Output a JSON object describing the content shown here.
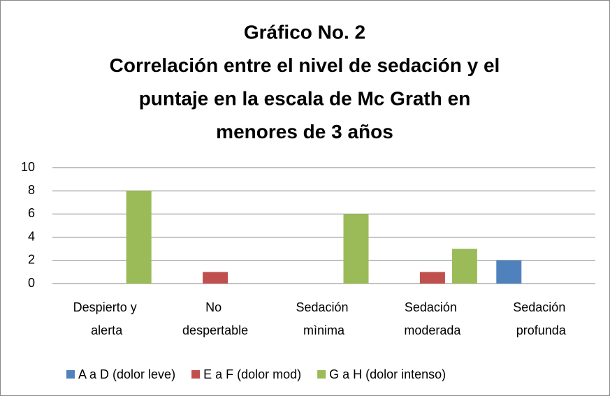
{
  "chart_data": {
    "type": "bar",
    "title": [
      "Gráfico No. 2",
      "Correlación  entre el nivel de sedación y el",
      "puntaje en la escala de Mc Grath en",
      "menores de 3 años"
    ],
    "categories": [
      "Despierto y alerta",
      "No despertable",
      "Sedación mìnima",
      "Sedación moderada",
      "Sedación profunda"
    ],
    "series": [
      {
        "name": "A a D (dolor leve)",
        "color": "#4f81bd",
        "values": [
          0,
          0,
          0,
          0,
          2
        ]
      },
      {
        "name": "E a F (dolor mod)",
        "color": "#c0504d",
        "values": [
          0,
          1,
          0,
          1,
          0
        ]
      },
      {
        "name": "G a H (dolor intenso)",
        "color": "#9bbb59",
        "values": [
          8,
          0,
          6,
          3,
          0
        ]
      }
    ],
    "ylim": [
      0,
      10
    ],
    "yticks": [
      0,
      2,
      4,
      6,
      8,
      10
    ],
    "grid": true,
    "legend": "bottom"
  }
}
